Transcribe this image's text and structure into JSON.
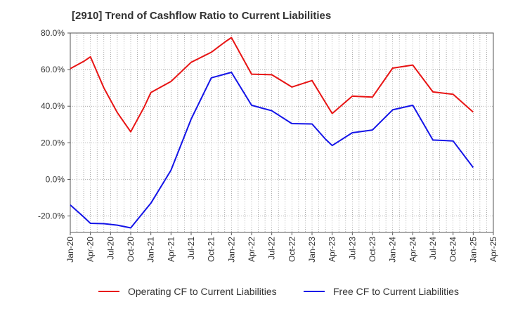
{
  "chart_data": {
    "type": "line",
    "title": "[2910]  Trend of Cashflow Ratio to Current Liabilities",
    "xlabel": "",
    "ylabel": "",
    "ylim": [
      -29,
      80
    ],
    "y_ticks": [
      -20,
      0,
      20,
      40,
      60,
      80
    ],
    "y_tick_labels": [
      "-20.0%",
      "0.0%",
      "20.0%",
      "40.0%",
      "60.0%",
      "80.0%"
    ],
    "x_range": [
      "Jan-20",
      "Apr-25"
    ],
    "x_tick_labels": [
      "Jan-20",
      "Apr-20",
      "Jul-20",
      "Oct-20",
      "Jan-21",
      "Apr-21",
      "Jul-21",
      "Oct-21",
      "Jan-22",
      "Apr-22",
      "Jul-22",
      "Oct-22",
      "Jan-23",
      "Apr-23",
      "Jul-23",
      "Oct-23",
      "Jan-24",
      "Apr-24",
      "Jul-24",
      "Oct-24",
      "Jan-25",
      "Apr-25"
    ],
    "grid": true,
    "legend_position": "bottom",
    "x": [
      "Jan-20",
      "Mar-20",
      "Apr-20",
      "Jun-20",
      "Aug-20",
      "Oct-20",
      "Dec-20",
      "Jan-21",
      "Apr-21",
      "Jul-21",
      "Oct-21",
      "Dec-21",
      "Jan-22",
      "Apr-22",
      "Jul-22",
      "Oct-22",
      "Jan-23",
      "Mar-23",
      "Apr-23",
      "Jul-23",
      "Oct-23",
      "Jan-24",
      "Apr-24",
      "Jul-24",
      "Oct-24",
      "Jan-25"
    ],
    "series": [
      {
        "name": "Operating CF to Current Liabilities",
        "color": "#e81414",
        "values": [
          60.5,
          64.5,
          67.0,
          50.0,
          36.5,
          26.0,
          39.5,
          47.5,
          53.5,
          64.0,
          69.5,
          75.0,
          77.5,
          57.5,
          57.2,
          50.5,
          54.0,
          42.0,
          36.0,
          45.5,
          45.0,
          60.8,
          62.5,
          47.8,
          46.5,
          36.8
        ]
      },
      {
        "name": "Free CF to Current Liabilities",
        "color": "#1414e8",
        "values": [
          -14.0,
          -20.5,
          -24.0,
          -24.2,
          -25.0,
          -26.5,
          -17.5,
          -13.0,
          5.0,
          33.0,
          55.5,
          57.5,
          58.5,
          40.5,
          37.5,
          30.5,
          30.3,
          22.0,
          18.5,
          25.5,
          27.0,
          38.0,
          40.5,
          21.5,
          21.0,
          6.5
        ]
      }
    ]
  }
}
